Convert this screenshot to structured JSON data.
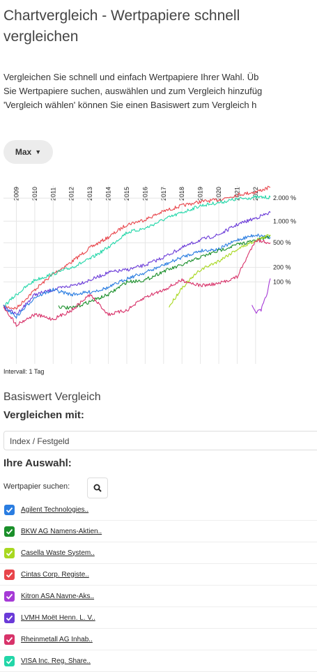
{
  "page": {
    "title": "Chartvergleich - Wertpapiere schnell vergleichen",
    "intro_lines": [
      "Vergleichen Sie schnell und einfach Wertpapiere Ihrer Wahl. Üb",
      "Sie Wertpapiere suchen, auswählen und zum Vergleich hinzufüg",
      "'Vergleich wählen' können Sie einen Basiswert zum Vergleich h"
    ]
  },
  "range_button": {
    "label": "Max"
  },
  "intervall": "Intervall: 1 Tag",
  "basis": {
    "heading": "Basiswert Vergleich",
    "compare_label": "Vergleichen mit:",
    "select_value": "Index / Festgeld"
  },
  "selection": {
    "heading": "Ihre Auswahl:",
    "search_label": "Wertpapier suchen:",
    "items": [
      {
        "label": "Agilent Technologies..",
        "color": "#2a7de1"
      },
      {
        "label": "BKW AG Namens-Aktien..",
        "color": "#1a8f2a"
      },
      {
        "label": "Casella Waste System..",
        "color": "#a8d820"
      },
      {
        "label": "Cintas Corp. Registe..",
        "color": "#e8454b"
      },
      {
        "label": "Kitron ASA Navne-Aks..",
        "color": "#a63ad6"
      },
      {
        "label": "LVMH Moët Henn. L. V..",
        "color": "#6a3ad8"
      },
      {
        "label": "Rheinmetall AG Inhab..",
        "color": "#d8336a"
      },
      {
        "label": "VISA Inc. Reg. Share..",
        "color": "#22d6a8"
      }
    ]
  },
  "chart_data": {
    "type": "line",
    "x_tick_labels": [
      "2009",
      "2010",
      "2011",
      "2012",
      "2013",
      "2014",
      "2015",
      "2016",
      "2017",
      "2018",
      "2019",
      "2020",
      "2021",
      "2022"
    ],
    "y_tick_labels": [
      "2.000 %",
      "1.000 %",
      "500 %",
      "200 %",
      "100 %"
    ],
    "y_scale": "log",
    "xlim": [
      2008.3,
      2022.8
    ],
    "ylim": [
      -80,
      2900
    ],
    "grid": true,
    "series": [
      {
        "color": "#e8454b",
        "x": [
          2008.3,
          2009,
          2010,
          2011,
          2012,
          2013,
          2014,
          2015,
          2016,
          2017,
          2018,
          2019,
          2020,
          2021,
          2022,
          2022.8
        ],
        "y": [
          0,
          -5,
          60,
          150,
          250,
          420,
          600,
          900,
          1050,
          1350,
          1600,
          1800,
          1900,
          2200,
          2400,
          2750
        ]
      },
      {
        "color": "#22d6a8",
        "x": [
          2008.3,
          2009,
          2010,
          2011,
          2012,
          2013,
          2014,
          2015,
          2016,
          2017,
          2018,
          2019,
          2020,
          2021,
          2022,
          2022.8
        ],
        "y": [
          0,
          40,
          110,
          150,
          200,
          280,
          430,
          700,
          800,
          1050,
          1300,
          1600,
          1750,
          1950,
          2050,
          2050
        ]
      },
      {
        "color": "#6a3ad8",
        "x": [
          2008.3,
          2009,
          2010,
          2011,
          2012,
          2013,
          2014,
          2015,
          2016,
          2017,
          2018,
          2019,
          2020,
          2021,
          2022,
          2022.8
        ],
        "y": [
          0,
          -20,
          40,
          60,
          80,
          110,
          160,
          180,
          220,
          300,
          420,
          550,
          650,
          900,
          1100,
          1300
        ]
      },
      {
        "color": "#2a7de1",
        "x": [
          2008.3,
          2009,
          2010,
          2011,
          2012,
          2013,
          2014,
          2015,
          2016,
          2017,
          2018,
          2019,
          2020,
          2021,
          2022,
          2022.8
        ],
        "y": [
          0,
          -25,
          30,
          60,
          40,
          50,
          70,
          120,
          160,
          220,
          300,
          380,
          400,
          550,
          650,
          600
        ]
      },
      {
        "color": "#1a8f2a",
        "x": [
          2011.3,
          2012,
          2013,
          2014,
          2015,
          2016,
          2017,
          2018,
          2019,
          2020,
          2021,
          2022,
          2022.8
        ],
        "y": [
          0,
          -5,
          15,
          40,
          100,
          110,
          170,
          220,
          300,
          380,
          470,
          540,
          620
        ]
      },
      {
        "color": "#a8d820",
        "x": [
          2017.3,
          2018,
          2019,
          2020,
          2021,
          2022,
          2022.8
        ],
        "y": [
          0,
          70,
          180,
          260,
          400,
          540,
          650
        ]
      },
      {
        "color": "#d8336a",
        "x": [
          2008.3,
          2009,
          2010,
          2011,
          2012,
          2013,
          2014,
          2015,
          2016,
          2017,
          2018,
          2019,
          2020,
          2021,
          2022,
          2022.8
        ],
        "y": [
          0,
          -40,
          -20,
          -30,
          -10,
          40,
          -20,
          -10,
          30,
          60,
          110,
          80,
          90,
          130,
          550,
          500
        ]
      },
      {
        "color": "#a63ad6",
        "x": [
          2021.8,
          2022,
          2022.3,
          2022.6,
          2022.8
        ],
        "y": [
          0,
          -15,
          -10,
          40,
          120
        ]
      }
    ]
  }
}
